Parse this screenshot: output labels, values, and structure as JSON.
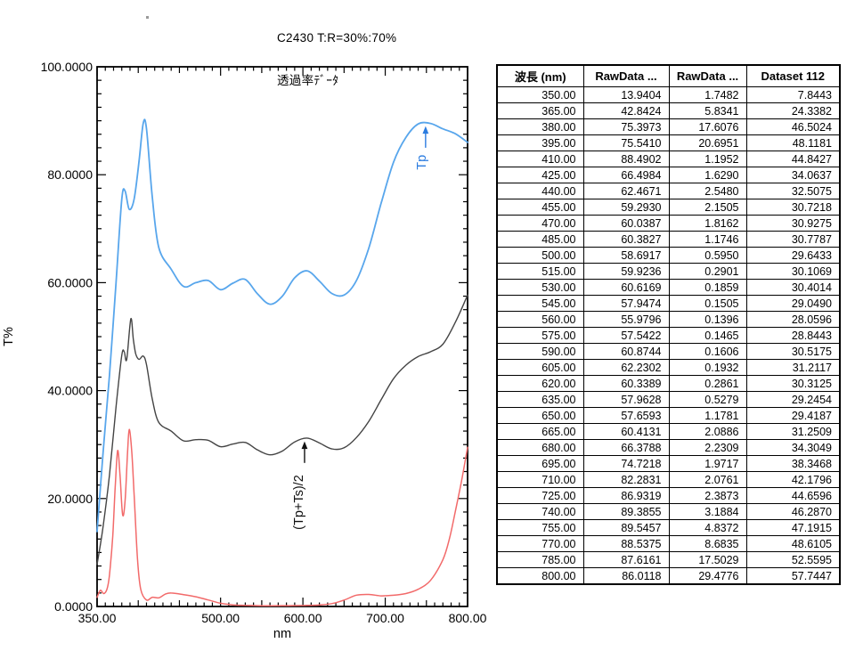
{
  "header": {
    "title_line1": "C2430 T:R=30%:70%",
    "title_line2": "透過率ﾃﾞｰﾀ"
  },
  "chart_data": {
    "type": "line",
    "title": "C2430 T:R=30%:70% 透過率ﾃﾞｰﾀ",
    "xlabel": "nm",
    "ylabel": "T%",
    "xlim": [
      350,
      800
    ],
    "ylim": [
      0,
      100
    ],
    "grid": false,
    "legend": "none",
    "x_major_ticks": [
      350,
      500,
      600,
      700,
      800
    ],
    "x_tick_labels": [
      "350.00",
      "500.00",
      "600.00",
      "700.00",
      "800.00"
    ],
    "x_medium_ticks": [
      400,
      450,
      550,
      650,
      750
    ],
    "x_minor_step": 10,
    "y_major_ticks": [
      0,
      20,
      40,
      60,
      80,
      100
    ],
    "y_tick_labels": [
      "0.0000",
      "20.0000",
      "40.0000",
      "60.0000",
      "80.0000",
      "100.0000"
    ],
    "y_minor_step": 2.5,
    "wavelengths": [
      350,
      365,
      380,
      395,
      410,
      425,
      440,
      455,
      470,
      485,
      500,
      515,
      530,
      545,
      560,
      575,
      590,
      605,
      620,
      635,
      650,
      665,
      680,
      695,
      710,
      725,
      740,
      755,
      770,
      785,
      800
    ],
    "series": [
      {
        "name": "RawData ... (Tp, blue curve)",
        "color": "#58a6ec",
        "values": [
          13.9404,
          42.8424,
          75.3973,
          75.541,
          88.4902,
          66.4984,
          62.4671,
          59.293,
          60.0387,
          60.3827,
          58.6917,
          59.9236,
          60.6169,
          57.9474,
          55.9796,
          57.5422,
          60.8744,
          62.2302,
          60.3389,
          57.9628,
          57.6593,
          60.4131,
          66.3788,
          74.7218,
          82.2831,
          86.9319,
          89.3855,
          89.5457,
          88.5375,
          87.6161,
          86.0118
        ]
      },
      {
        "name": "RawData ... (Ts, red curve)",
        "color": "#f26a6a",
        "values": [
          1.7482,
          5.8341,
          17.6076,
          20.6951,
          1.1952,
          1.629,
          2.548,
          2.1505,
          1.8162,
          1.1746,
          0.595,
          0.2901,
          0.1859,
          0.1505,
          0.1396,
          0.1465,
          0.1606,
          0.1932,
          0.2861,
          0.5279,
          1.1781,
          2.0886,
          2.2309,
          1.9717,
          2.0761,
          2.3873,
          3.1884,
          4.8372,
          8.6835,
          17.5029,
          29.4776
        ]
      },
      {
        "name": "Dataset 112 ((Tp+Ts)/2, black curve)",
        "color": "#444444",
        "values": [
          7.8443,
          24.3382,
          46.5024,
          48.1181,
          44.8427,
          34.0637,
          32.5075,
          30.7218,
          30.9275,
          30.7787,
          29.6433,
          30.1069,
          30.4014,
          29.049,
          28.0596,
          28.8443,
          30.5175,
          31.2117,
          30.3125,
          29.2454,
          29.4187,
          31.2509,
          34.3049,
          38.3468,
          42.1796,
          44.6596,
          46.287,
          47.1915,
          48.6105,
          52.5595,
          57.7447
        ]
      }
    ],
    "curves": [
      {
        "ref": 0,
        "color": "#58a6ec",
        "width": 1.8,
        "points": [
          [
            350,
            13.9
          ],
          [
            357,
            28
          ],
          [
            365,
            42.8
          ],
          [
            373,
            60
          ],
          [
            380,
            75.4
          ],
          [
            384,
            77
          ],
          [
            389,
            73.6
          ],
          [
            395,
            75.5
          ],
          [
            401,
            82.5
          ],
          [
            406,
            89.5
          ],
          [
            410,
            88.5
          ],
          [
            417,
            76
          ],
          [
            425,
            66.5
          ],
          [
            440,
            62.5
          ],
          [
            455,
            59.3
          ],
          [
            470,
            60.0
          ],
          [
            485,
            60.4
          ],
          [
            500,
            58.7
          ],
          [
            515,
            59.9
          ],
          [
            530,
            60.6
          ],
          [
            545,
            57.9
          ],
          [
            560,
            56.0
          ],
          [
            575,
            57.5
          ],
          [
            590,
            60.9
          ],
          [
            605,
            62.2
          ],
          [
            620,
            60.3
          ],
          [
            635,
            58.0
          ],
          [
            650,
            57.7
          ],
          [
            665,
            60.4
          ],
          [
            680,
            66.4
          ],
          [
            695,
            74.7
          ],
          [
            710,
            82.3
          ],
          [
            725,
            86.9
          ],
          [
            740,
            89.4
          ],
          [
            755,
            89.5
          ],
          [
            770,
            88.5
          ],
          [
            785,
            87.6
          ],
          [
            800,
            86.0
          ]
        ]
      },
      {
        "ref": 2,
        "color": "#444444",
        "width": 1.4,
        "points": [
          [
            350,
            7.8
          ],
          [
            357,
            14.5
          ],
          [
            365,
            24.3
          ],
          [
            373,
            37
          ],
          [
            380,
            46.5
          ],
          [
            383,
            47.2
          ],
          [
            386,
            45.8
          ],
          [
            391,
            53.3
          ],
          [
            394,
            49.5
          ],
          [
            397,
            46.8
          ],
          [
            401,
            45.8
          ],
          [
            406,
            46.4
          ],
          [
            410,
            44.8
          ],
          [
            417,
            38.5
          ],
          [
            425,
            34.1
          ],
          [
            440,
            32.5
          ],
          [
            455,
            30.7
          ],
          [
            470,
            30.9
          ],
          [
            485,
            30.8
          ],
          [
            500,
            29.6
          ],
          [
            515,
            30.1
          ],
          [
            530,
            30.4
          ],
          [
            545,
            29.0
          ],
          [
            560,
            28.1
          ],
          [
            575,
            28.8
          ],
          [
            590,
            30.5
          ],
          [
            605,
            31.2
          ],
          [
            620,
            30.3
          ],
          [
            635,
            29.2
          ],
          [
            650,
            29.4
          ],
          [
            665,
            31.3
          ],
          [
            680,
            34.3
          ],
          [
            695,
            38.3
          ],
          [
            710,
            42.2
          ],
          [
            725,
            44.7
          ],
          [
            740,
            46.3
          ],
          [
            755,
            47.2
          ],
          [
            770,
            48.6
          ],
          [
            785,
            52.6
          ],
          [
            800,
            57.7
          ]
        ]
      },
      {
        "ref": 1,
        "color": "#f26a6a",
        "width": 1.5,
        "points": [
          [
            350,
            1.7
          ],
          [
            354,
            3.0
          ],
          [
            358,
            2.4
          ],
          [
            362,
            3.2
          ],
          [
            365,
            5.8
          ],
          [
            369,
            13
          ],
          [
            372,
            22
          ],
          [
            375,
            28.9
          ],
          [
            378,
            24
          ],
          [
            381,
            17
          ],
          [
            384,
            19.5
          ],
          [
            387,
            28.5
          ],
          [
            389,
            32.8
          ],
          [
            392,
            29
          ],
          [
            395,
            20.7
          ],
          [
            399,
            9
          ],
          [
            403,
            3.2
          ],
          [
            410,
            1.2
          ],
          [
            417,
            1.7
          ],
          [
            425,
            1.6
          ],
          [
            433,
            2.3
          ],
          [
            440,
            2.5
          ],
          [
            455,
            2.2
          ],
          [
            470,
            1.8
          ],
          [
            485,
            1.2
          ],
          [
            500,
            0.6
          ],
          [
            515,
            0.3
          ],
          [
            530,
            0.2
          ],
          [
            545,
            0.15
          ],
          [
            560,
            0.14
          ],
          [
            575,
            0.15
          ],
          [
            590,
            0.16
          ],
          [
            605,
            0.19
          ],
          [
            620,
            0.29
          ],
          [
            635,
            0.53
          ],
          [
            650,
            1.18
          ],
          [
            665,
            2.09
          ],
          [
            680,
            2.23
          ],
          [
            695,
            1.97
          ],
          [
            710,
            2.08
          ],
          [
            725,
            2.39
          ],
          [
            740,
            3.19
          ],
          [
            755,
            4.84
          ],
          [
            770,
            8.68
          ],
          [
            778,
            12.6
          ],
          [
            785,
            17.5
          ],
          [
            793,
            23.5
          ],
          [
            800,
            29.5
          ]
        ]
      }
    ],
    "annotations": [
      {
        "id": "tp",
        "text": "Tp",
        "color": "#2b7ce0",
        "arrow_nm": 749,
        "arrow_tip_t": 89.0,
        "arrow_tail_t": 85.0,
        "label_nm": 749,
        "label_t": 82.3
      },
      {
        "id": "mean",
        "text": "(Tp+Ts)/2",
        "color": "#111111",
        "arrow_nm": 602,
        "arrow_tip_t": 30.6,
        "arrow_tail_t": 26.6,
        "label_nm": 600,
        "label_t": 19.3
      }
    ]
  },
  "table": {
    "headers": [
      "波長 (nm)",
      "RawData ...",
      "RawData ...",
      "Dataset 112"
    ],
    "wavelength_decimals": 2,
    "value_decimals": 4,
    "column_series_order": [
      0,
      1,
      2
    ]
  }
}
